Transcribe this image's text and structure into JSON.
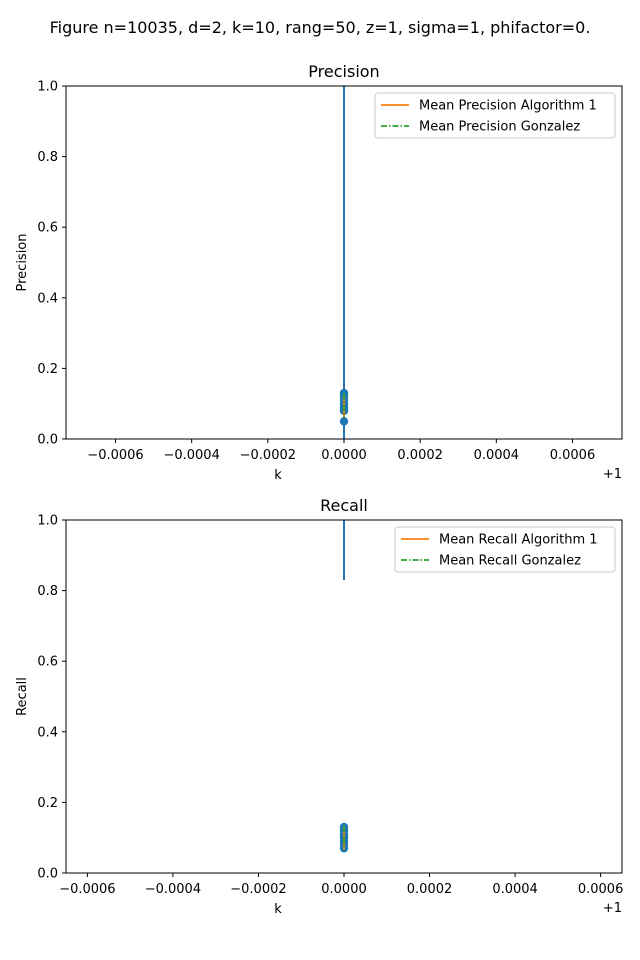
{
  "figure_title": "Figure   n=10035, d=2, k=10, rang=50, z=1, sigma=1, phifactor=0.",
  "colors": {
    "points": "#1f77b4",
    "algorithm1": "#ff7f0e",
    "gonzalez": "#2ca02c",
    "axes": "#000000"
  },
  "chart_data": [
    {
      "type": "scatter",
      "title": "Precision",
      "xlabel": "k",
      "ylabel": "Precision",
      "x_offset_label": "+1",
      "xlim": [
        -0.00073,
        0.00073
      ],
      "ylim": [
        0,
        1.0
      ],
      "x_ticks": [
        -0.0006,
        -0.0004,
        -0.0002,
        0.0,
        0.0002,
        0.0004,
        0.0006
      ],
      "x_tick_labels": [
        "−0.0006",
        "−0.0004",
        "−0.0002",
        "0.0000",
        "0.0002",
        "0.0004",
        "0.0006"
      ],
      "y_ticks": [
        0.0,
        0.2,
        0.4,
        0.6,
        0.8,
        1.0
      ],
      "y_tick_labels": [
        "0.0",
        "0.2",
        "0.4",
        "0.6",
        "0.8",
        "1.0"
      ],
      "grid": false,
      "legend_position": "top-right",
      "points": {
        "x": [
          0,
          0,
          0,
          0,
          0,
          0,
          0,
          0,
          0,
          0
        ],
        "y": [
          0.05,
          0.08,
          0.09,
          0.1,
          0.11,
          0.12,
          0.125,
          0.13,
          0.095,
          0.085
        ]
      },
      "error_bar": {
        "x": 0,
        "y_low": 0.0,
        "y_high": 1.0
      },
      "series": [
        {
          "name": "Mean Precision Algorithm 1",
          "style": "solid",
          "x": [
            0
          ],
          "y": [
            0.095
          ]
        },
        {
          "name": "Mean Precision Gonzalez",
          "style": "dashdot",
          "x": [
            0
          ],
          "y": [
            0.095
          ]
        }
      ]
    },
    {
      "type": "scatter",
      "title": "Recall",
      "xlabel": "k",
      "ylabel": "Recall",
      "x_offset_label": "+1",
      "xlim": [
        -0.00065,
        0.00065
      ],
      "ylim": [
        0,
        1.0
      ],
      "x_ticks": [
        -0.0006,
        -0.0004,
        -0.0002,
        0.0,
        0.0002,
        0.0004,
        0.0006
      ],
      "x_tick_labels": [
        "−0.0006",
        "−0.0004",
        "−0.0002",
        "0.0000",
        "0.0002",
        "0.0004",
        "0.0006"
      ],
      "y_ticks": [
        0.0,
        0.2,
        0.4,
        0.6,
        0.8,
        1.0
      ],
      "y_tick_labels": [
        "0.0",
        "0.2",
        "0.4",
        "0.6",
        "0.8",
        "1.0"
      ],
      "grid": false,
      "legend_position": "top-right",
      "points": {
        "x": [
          0,
          0,
          0,
          0,
          0,
          0,
          0,
          0,
          0
        ],
        "y": [
          0.07,
          0.08,
          0.09,
          0.1,
          0.105,
          0.11,
          0.12,
          0.125,
          0.13
        ]
      },
      "error_bar": {
        "x": 0,
        "y_low": 0.83,
        "y_high": 1.0
      },
      "series": [
        {
          "name": "Mean Recall Algorithm 1",
          "style": "solid",
          "x": [
            0
          ],
          "y": [
            0.1
          ]
        },
        {
          "name": "Mean Recall Gonzalez",
          "style": "dashdot",
          "x": [
            0
          ],
          "y": [
            0.1
          ]
        }
      ]
    }
  ]
}
